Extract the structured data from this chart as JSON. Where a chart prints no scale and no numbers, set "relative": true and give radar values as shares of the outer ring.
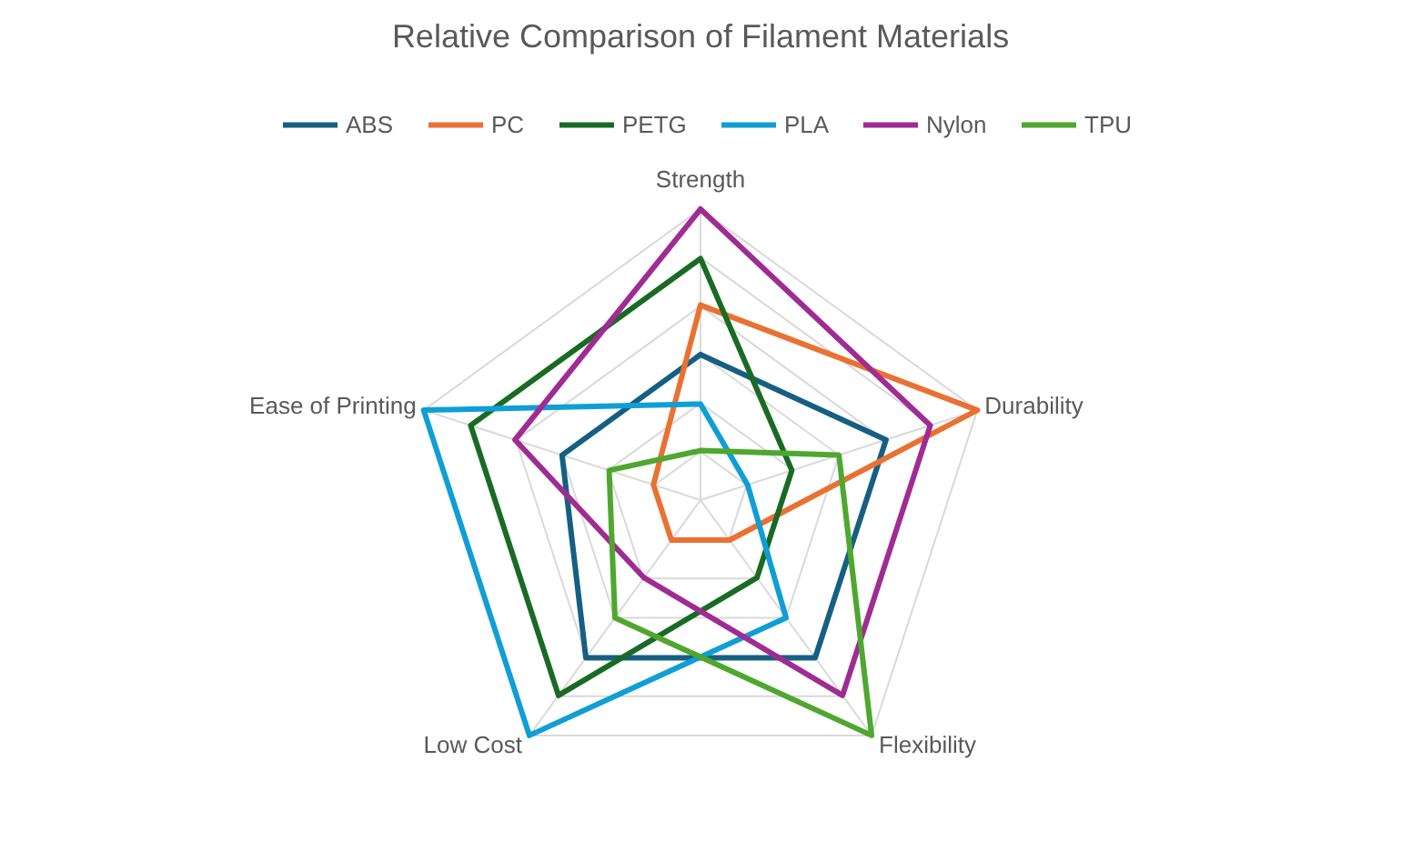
{
  "chart_data": {
    "type": "radar",
    "title": "Relative Comparison of Filament Materials",
    "categories": [
      "Strength",
      "Durability",
      "Flexibility",
      "Low Cost",
      "Ease of Printing"
    ],
    "relative": true,
    "grid": true,
    "legend": "top",
    "series": [
      {
        "name": "ABS",
        "color": "#156082",
        "values": [
          0.5,
          0.67,
          0.67,
          0.67,
          0.5
        ]
      },
      {
        "name": "PC",
        "color": "#e97132",
        "values": [
          0.67,
          1,
          0.17,
          0.17,
          0.17
        ]
      },
      {
        "name": "PETG",
        "color": "#196b24",
        "values": [
          0.83,
          0.33,
          0.33,
          0.83,
          0.83
        ]
      },
      {
        "name": "PLA",
        "color": "#0f9ed5",
        "values": [
          0.33,
          0.17,
          0.5,
          1,
          1
        ]
      },
      {
        "name": "Nylon",
        "color": "#a02b93",
        "values": [
          1,
          0.83,
          0.83,
          0.33,
          0.67
        ]
      },
      {
        "name": "TPU",
        "color": "#4ea72e",
        "values": [
          0.17,
          0.5,
          1,
          0.5,
          0.33
        ]
      }
    ]
  }
}
